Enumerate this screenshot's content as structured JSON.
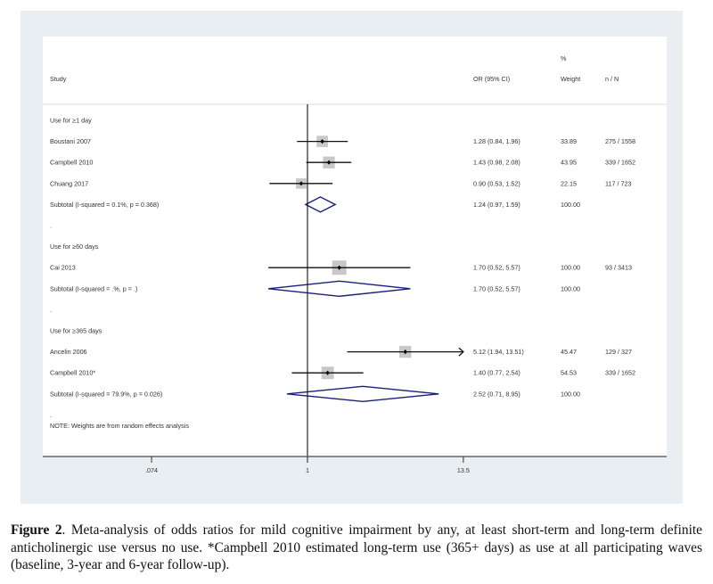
{
  "chart_data": {
    "type": "forest",
    "scale": "log",
    "headers": {
      "study": "Study",
      "or_ci": "OR (95% CI)",
      "weight_top": "%",
      "weight": "Weight",
      "n_over_N": "n / N"
    },
    "x_ticks": [
      {
        "value": 0.074,
        "label": ".074"
      },
      {
        "value": 1,
        "label": "1"
      },
      {
        "value": 13.5,
        "label": "13.5"
      }
    ],
    "x_range": [
      0.074,
      13.5
    ],
    "null_value": 1,
    "rows": [
      {
        "kind": "group",
        "label": "Use for ≥1 day"
      },
      {
        "kind": "study",
        "label": "Boustani 2007",
        "or": 1.28,
        "lo": 0.84,
        "hi": 1.96,
        "or_text": "1.28 (0.84, 1.96)",
        "weight": "33.89",
        "n_over_N": "275 / 1558"
      },
      {
        "kind": "study",
        "label": "Campbell 2010",
        "or": 1.43,
        "lo": 0.98,
        "hi": 2.08,
        "or_text": "1.43 (0.98, 2.08)",
        "weight": "43.95",
        "n_over_N": "339 / 1652"
      },
      {
        "kind": "study",
        "label": "Chuang 2017",
        "or": 0.9,
        "lo": 0.53,
        "hi": 1.52,
        "or_text": "0.90 (0.53, 1.52)",
        "weight": "22.15",
        "n_over_N": "117 / 723"
      },
      {
        "kind": "subtotal",
        "label": "Subtotal  (I-squared = 0.1%, p = 0.368)",
        "or": 1.24,
        "lo": 0.97,
        "hi": 1.59,
        "or_text": "1.24 (0.97, 1.59)",
        "weight": "100.00",
        "n_over_N": ""
      },
      {
        "kind": "spacer",
        "label": "."
      },
      {
        "kind": "group",
        "label": "Use for ≥60 days"
      },
      {
        "kind": "study",
        "label": "Cai 2013",
        "or": 1.7,
        "lo": 0.52,
        "hi": 5.57,
        "or_text": "1.70 (0.52, 5.57)",
        "weight": "100.00",
        "n_over_N": "93 / 3413"
      },
      {
        "kind": "subtotal",
        "label": "Subtotal  (I-squared = .%, p = .)",
        "or": 1.7,
        "lo": 0.52,
        "hi": 5.57,
        "or_text": "1.70 (0.52, 5.57)",
        "weight": "100.00",
        "n_over_N": ""
      },
      {
        "kind": "spacer",
        "label": "."
      },
      {
        "kind": "group",
        "label": "Use for ≥365 days"
      },
      {
        "kind": "study",
        "label": "Ancelin 2006",
        "or": 5.12,
        "lo": 1.94,
        "hi": 13.51,
        "or_text": "5.12 (1.94, 13.51)",
        "weight": "45.47",
        "n_over_N": "129 / 327",
        "arrow_right": true
      },
      {
        "kind": "study",
        "label": "Campbell 2010*",
        "or": 1.4,
        "lo": 0.77,
        "hi": 2.54,
        "or_text": "1.40 (0.77, 2.54)",
        "weight": "54.53",
        "n_over_N": "339 / 1652"
      },
      {
        "kind": "subtotal",
        "label": "Subtotal  (I-squared = 79.9%, p = 0.026)",
        "or": 2.52,
        "lo": 0.71,
        "hi": 8.95,
        "or_text": "2.52 (0.71, 8.95)",
        "weight": "100.00",
        "n_over_N": ""
      },
      {
        "kind": "spacer",
        "label": "."
      },
      {
        "kind": "note",
        "label": "NOTE: Weights are from random effects analysis"
      }
    ],
    "colors": {
      "diamond": "#1a1f7a",
      "weight_box": "#c8c8c8",
      "line": "#111111",
      "panel_bg": "#e8eef1"
    }
  },
  "caption": {
    "label": "Figure 2",
    "text": ".  Meta-analysis of odds ratios for mild cognitive impairment by any, at least short-term and long-term definite anticholinergic use versus no use. *Campbell 2010 estimated long-term use (365+ days) as use at all participating waves (baseline, 3-year and 6-year follow-up)."
  }
}
